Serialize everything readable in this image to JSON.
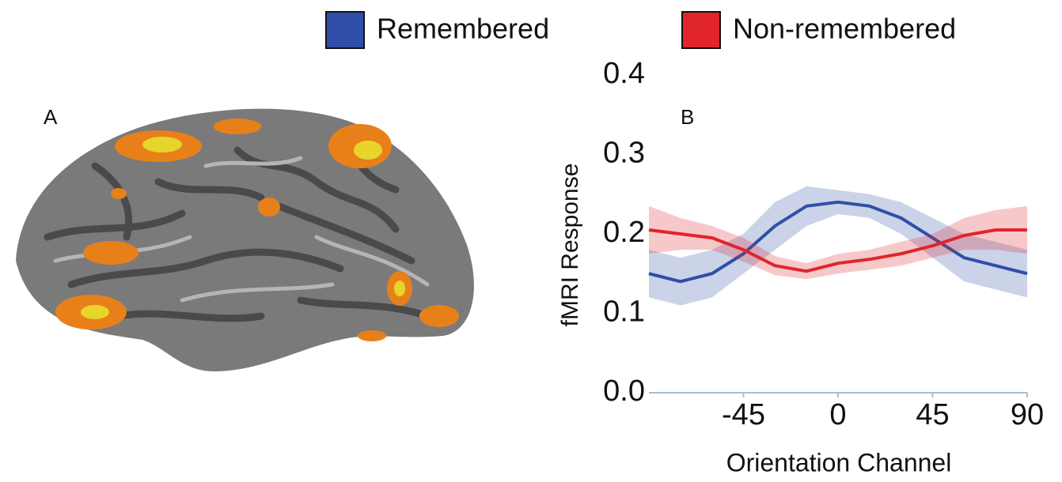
{
  "brain_panel": {
    "label": "A"
  },
  "chart_data": {
    "type": "line",
    "panel_label": "B",
    "xlabel": "Orientation Channel",
    "ylabel": "fMRI Response",
    "x": [
      -90,
      -75,
      -60,
      -45,
      -30,
      -15,
      0,
      15,
      30,
      45,
      60,
      75,
      90
    ],
    "xlim": [
      -90,
      90
    ],
    "xticks": [
      -45,
      0,
      45,
      90
    ],
    "ylim": [
      0,
      0.4
    ],
    "yticks": [
      {
        "value": 0,
        "label": "0.0"
      },
      0.1,
      0.2,
      0.3,
      0.4
    ],
    "series": [
      {
        "name": "Remembered",
        "color": "#2f4fa8",
        "values": [
          0.15,
          0.14,
          0.15,
          0.175,
          0.21,
          0.235,
          0.24,
          0.235,
          0.22,
          0.195,
          0.17,
          0.16,
          0.15
        ],
        "lower": [
          0.12,
          0.11,
          0.12,
          0.15,
          0.18,
          0.21,
          0.225,
          0.22,
          0.2,
          0.17,
          0.14,
          0.13,
          0.12
        ],
        "upper": [
          0.18,
          0.17,
          0.18,
          0.2,
          0.24,
          0.26,
          0.255,
          0.25,
          0.24,
          0.22,
          0.2,
          0.19,
          0.18
        ]
      },
      {
        "name": "Non-remembered",
        "color": "#e0252b",
        "values": [
          0.205,
          0.2,
          0.195,
          0.18,
          0.16,
          0.153,
          0.163,
          0.168,
          0.175,
          0.185,
          0.198,
          0.205,
          0.205
        ],
        "lower": [
          0.175,
          0.18,
          0.18,
          0.165,
          0.148,
          0.143,
          0.15,
          0.155,
          0.16,
          0.17,
          0.18,
          0.18,
          0.175
        ],
        "upper": [
          0.235,
          0.22,
          0.21,
          0.195,
          0.172,
          0.163,
          0.175,
          0.18,
          0.19,
          0.2,
          0.22,
          0.23,
          0.235
        ]
      }
    ]
  }
}
